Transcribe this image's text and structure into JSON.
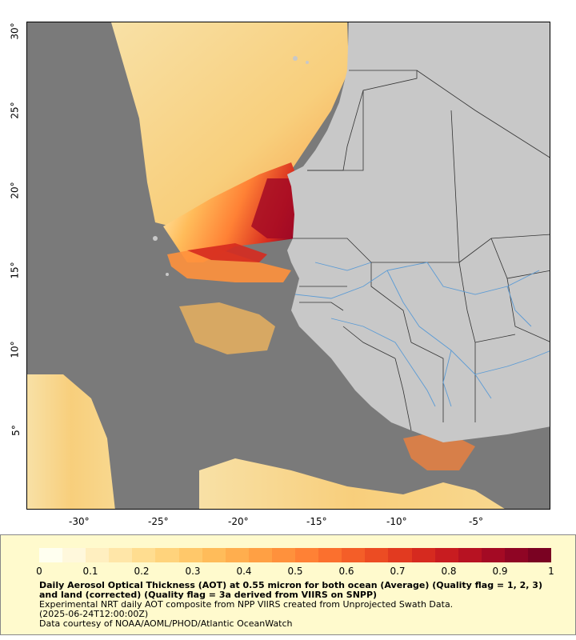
{
  "map": {
    "ocean_color": "#7a7a7a",
    "land_color": "#c8c8c8",
    "river_color": "#5b9bd5",
    "border_color": "#333333",
    "x_ticks": [
      "-30°",
      "-25°",
      "-20°",
      "-15°",
      "-10°",
      "-5°"
    ],
    "y_ticks": [
      "30°",
      "25°",
      "20°",
      "15°",
      "10°",
      "5°"
    ]
  },
  "legend": {
    "colorbar_colors": [
      "#fffff0",
      "#fff8dc",
      "#ffefc0",
      "#ffe6a8",
      "#ffdd90",
      "#ffd37c",
      "#ffc86a",
      "#ffbc5a",
      "#ffae4e",
      "#ffa044",
      "#ff913c",
      "#ff8135",
      "#fb702e",
      "#f45e28",
      "#ec4c23",
      "#e23a20",
      "#d62a1f",
      "#c81c20",
      "#b71222",
      "#a40a24",
      "#8f0524",
      "#7a0222"
    ],
    "ticks": [
      "0",
      "0.1",
      "0.2",
      "0.3",
      "0.4",
      "0.5",
      "0.6",
      "0.7",
      "0.8",
      "0.9",
      "1"
    ],
    "title": "Daily Aerosol Optical Thickness (AOT) at 0.55 micron for both ocean (Average) (Quality flag = 1, 2, 3) and land (corrected) (Quality flag = 3a derived from VIIRS on SNPP)",
    "line2": "Experimental NRT daily AOT composite from NPP VIIRS created from Unprojected Swath Data.",
    "line3": "(2025-06-24T12:00:00Z)",
    "line4": "Data courtesy of NOAA/AOML/PHOD/Atlantic OceanWatch"
  }
}
